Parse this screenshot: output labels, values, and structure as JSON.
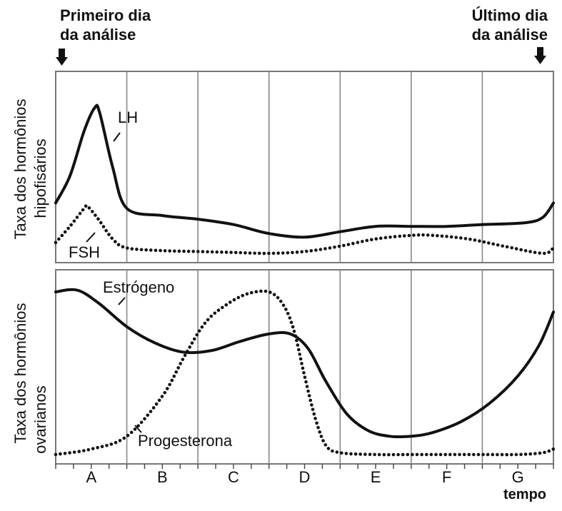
{
  "markers": {
    "first_day": [
      "Primeiro dia",
      "da análise"
    ],
    "last_day": [
      "Último dia",
      "da análise"
    ]
  },
  "chart_data": [
    {
      "type": "line",
      "panel": "top",
      "ylabel": [
        "Taxa dos hormônios",
        "hipofisários"
      ],
      "categories": [
        "A",
        "B",
        "C",
        "D",
        "E",
        "F",
        "G"
      ],
      "x_range": [
        0,
        7
      ],
      "y_range": [
        0,
        1
      ],
      "grid": "vertical",
      "series": [
        {
          "name": "LH",
          "style": "solid",
          "x": [
            0.0,
            0.2,
            0.4,
            0.55,
            0.62,
            0.8,
            1.0,
            1.5,
            2.0,
            2.5,
            3.0,
            3.5,
            4.0,
            4.5,
            5.0,
            5.5,
            6.0,
            6.6,
            6.85,
            7.0
          ],
          "y": [
            0.3,
            0.45,
            0.7,
            0.83,
            0.8,
            0.5,
            0.27,
            0.23,
            0.21,
            0.18,
            0.13,
            0.11,
            0.14,
            0.17,
            0.17,
            0.17,
            0.18,
            0.19,
            0.22,
            0.3
          ]
        },
        {
          "name": "FSH",
          "style": "dotted",
          "x": [
            0.0,
            0.2,
            0.4,
            0.45,
            0.6,
            0.8,
            1.0,
            1.5,
            2.0,
            2.5,
            3.0,
            3.5,
            4.0,
            4.5,
            5.0,
            5.3,
            5.8,
            6.3,
            6.85,
            7.0
          ],
          "y": [
            0.08,
            0.17,
            0.27,
            0.28,
            0.21,
            0.1,
            0.05,
            0.035,
            0.03,
            0.025,
            0.02,
            0.03,
            0.06,
            0.1,
            0.12,
            0.12,
            0.1,
            0.06,
            0.02,
            0.05
          ]
        }
      ],
      "annotations": [
        "LH",
        "FSH"
      ]
    },
    {
      "type": "line",
      "panel": "bottom",
      "ylabel": [
        "Taxa dos hormônios",
        "ovarianos"
      ],
      "xlabel": "tempo",
      "categories": [
        "A",
        "B",
        "C",
        "D",
        "E",
        "F",
        "G"
      ],
      "x_range": [
        0,
        7
      ],
      "y_range": [
        0,
        1
      ],
      "grid": "vertical",
      "series": [
        {
          "name": "Estrógeno",
          "style": "solid",
          "x": [
            0.0,
            0.3,
            0.6,
            1.0,
            1.4,
            1.8,
            2.2,
            2.6,
            3.0,
            3.3,
            3.55,
            3.8,
            4.1,
            4.4,
            4.7,
            5.0,
            5.3,
            5.7,
            6.1,
            6.5,
            6.8,
            7.0
          ],
          "y": [
            0.91,
            0.92,
            0.85,
            0.72,
            0.63,
            0.58,
            0.59,
            0.64,
            0.68,
            0.68,
            0.6,
            0.42,
            0.24,
            0.15,
            0.12,
            0.12,
            0.14,
            0.2,
            0.3,
            0.45,
            0.62,
            0.8
          ],
          "label": "Estrógeno"
        },
        {
          "name": "Progesterona",
          "style": "dotted",
          "x": [
            0.0,
            0.5,
            1.0,
            1.5,
            1.8,
            2.1,
            2.4,
            2.7,
            3.0,
            3.2,
            3.35,
            3.5,
            3.65,
            3.8,
            4.0,
            4.5,
            5.0,
            5.5,
            6.0,
            6.5,
            6.85,
            7.0
          ],
          "y": [
            0.02,
            0.05,
            0.12,
            0.34,
            0.55,
            0.74,
            0.84,
            0.9,
            0.91,
            0.84,
            0.7,
            0.45,
            0.22,
            0.07,
            0.03,
            0.02,
            0.02,
            0.02,
            0.02,
            0.02,
            0.03,
            0.05
          ],
          "label": "Progesterona"
        }
      ],
      "annotations": [
        "Estrógeno",
        "Progesterona"
      ]
    }
  ]
}
